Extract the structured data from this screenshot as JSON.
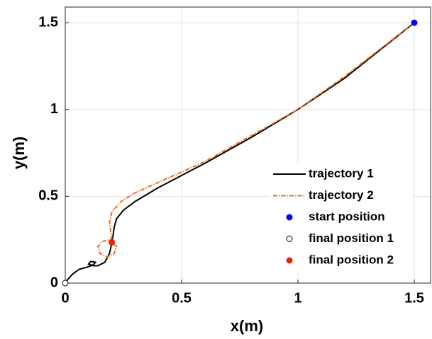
{
  "chart_data": {
    "type": "line",
    "xlabel": "x(m)",
    "ylabel": "y(m)",
    "xlim": [
      0,
      1.57
    ],
    "ylim": [
      0,
      1.59
    ],
    "xticks": [
      0,
      0.5,
      1,
      1.5
    ],
    "yticks": [
      0,
      0.5,
      1,
      1.5
    ],
    "grid": true,
    "legend": "lower right",
    "series": [
      {
        "name": "trajectory 1",
        "type": "line",
        "color": "#000000",
        "dash": "solid",
        "x": [
          1.5,
          1.2,
          1.0,
          0.8,
          0.6,
          0.5,
          0.4,
          0.3,
          0.25,
          0.22,
          0.21,
          0.205,
          0.2,
          0.19,
          0.17,
          0.14,
          0.12,
          0.1,
          0.11,
          0.13,
          0.12,
          0.09,
          0.06,
          0.03,
          0.01,
          0
        ],
        "y": [
          1.5,
          1.18,
          1.0,
          0.84,
          0.69,
          0.62,
          0.55,
          0.47,
          0.42,
          0.37,
          0.32,
          0.27,
          0.23,
          0.17,
          0.12,
          0.1,
          0.1,
          0.11,
          0.125,
          0.12,
          0.105,
          0.09,
          0.08,
          0.05,
          0.02,
          0
        ]
      },
      {
        "name": "trajectory 2",
        "type": "line",
        "color": "#f26b1d",
        "dash": "dashdot",
        "x": [
          1.5,
          1.2,
          1.0,
          0.8,
          0.6,
          0.4,
          0.3,
          0.24,
          0.2,
          0.19,
          0.195,
          0.2,
          0.19,
          0.16,
          0.14,
          0.15,
          0.18,
          0.21,
          0.22,
          0.2
        ],
        "y": [
          1.5,
          1.19,
          1.0,
          0.85,
          0.7,
          0.58,
          0.52,
          0.47,
          0.41,
          0.35,
          0.3,
          0.26,
          0.25,
          0.24,
          0.21,
          0.17,
          0.15,
          0.17,
          0.21,
          0.235
        ]
      },
      {
        "name": "start position",
        "type": "scatter",
        "color": "#0000ff",
        "facecolor": "#0000ff",
        "x": [
          1.5
        ],
        "y": [
          1.5
        ]
      },
      {
        "name": "final position 1",
        "type": "scatter",
        "color": "#000000",
        "facecolor": "#ffffff",
        "x": [
          0
        ],
        "y": [
          0
        ]
      },
      {
        "name": "final position 2",
        "type": "scatter",
        "color": "#e8220a",
        "facecolor": "#e8220a",
        "x": [
          0.2
        ],
        "y": [
          0.235
        ]
      }
    ]
  }
}
